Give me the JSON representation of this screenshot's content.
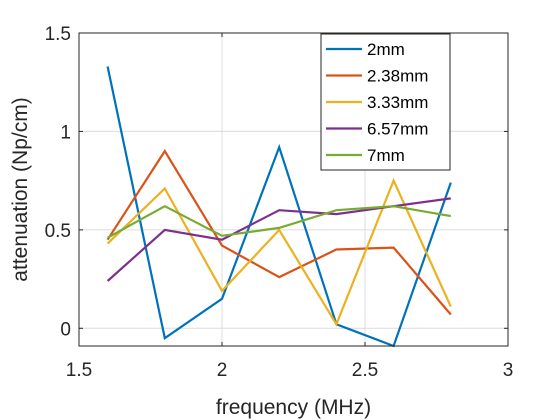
{
  "chart_data": {
    "type": "line",
    "title": "",
    "xlabel": "frequency (MHz)",
    "ylabel": "attenuation (Np/cm)",
    "xlim": [
      1.5,
      3
    ],
    "ylim": [
      -0.09,
      1.5
    ],
    "xticks": [
      1.5,
      2,
      2.5,
      3
    ],
    "xtick_labels": [
      "1.5",
      "2",
      "2.5",
      "3"
    ],
    "yticks": [
      0,
      0.5,
      1,
      1.5
    ],
    "ytick_labels": [
      "0",
      "0.5",
      "1",
      "1.5"
    ],
    "grid": true,
    "legend_position": "top-right",
    "x": [
      1.6,
      1.8,
      2.0,
      2.2,
      2.4,
      2.6,
      2.8
    ],
    "series": [
      {
        "name": "2mm",
        "color": "#0072BD",
        "values": [
          1.33,
          -0.05,
          0.15,
          0.92,
          0.02,
          -0.09,
          0.74
        ]
      },
      {
        "name": "2.38mm",
        "color": "#D95319",
        "values": [
          0.45,
          0.9,
          0.42,
          0.26,
          0.4,
          0.41,
          0.07
        ]
      },
      {
        "name": "3.33mm",
        "color": "#EDB120",
        "values": [
          0.43,
          0.71,
          0.19,
          0.5,
          0.02,
          0.75,
          0.11
        ]
      },
      {
        "name": "6.57mm",
        "color": "#7E2F8E",
        "values": [
          0.24,
          0.5,
          0.45,
          0.6,
          0.58,
          0.62,
          0.66
        ]
      },
      {
        "name": "7mm",
        "color": "#77AC30",
        "values": [
          0.46,
          0.62,
          0.47,
          0.51,
          0.6,
          0.62,
          0.57
        ]
      }
    ]
  }
}
